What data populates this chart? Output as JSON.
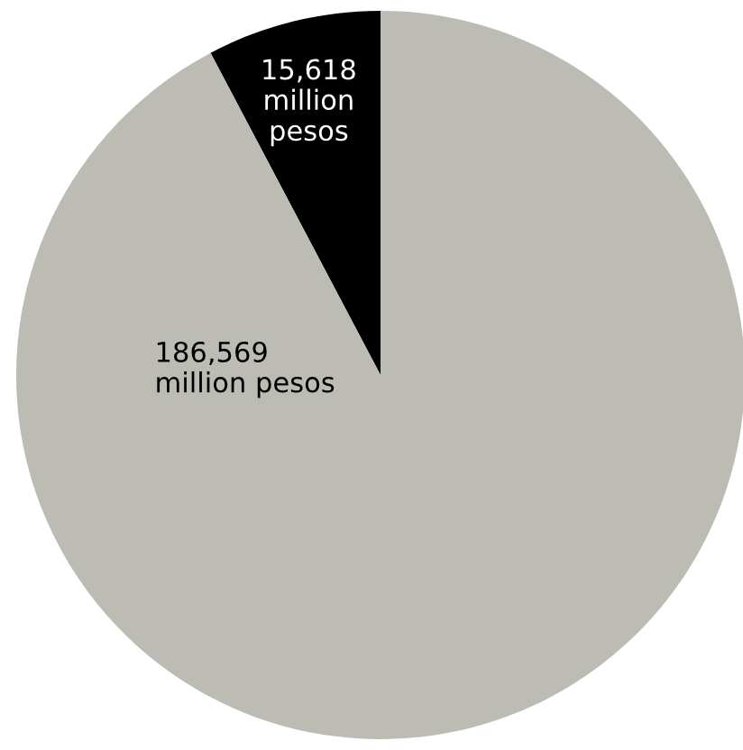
{
  "chart_data": {
    "type": "pie",
    "categories": [
      null,
      null
    ],
    "values": [
      15618,
      186569
    ],
    "colors": [
      "#000000",
      "#bcbcb4"
    ],
    "value_labels": [
      "15,618",
      "186,569"
    ],
    "annotations": [
      "million\npesos",
      "million pesos"
    ]
  }
}
